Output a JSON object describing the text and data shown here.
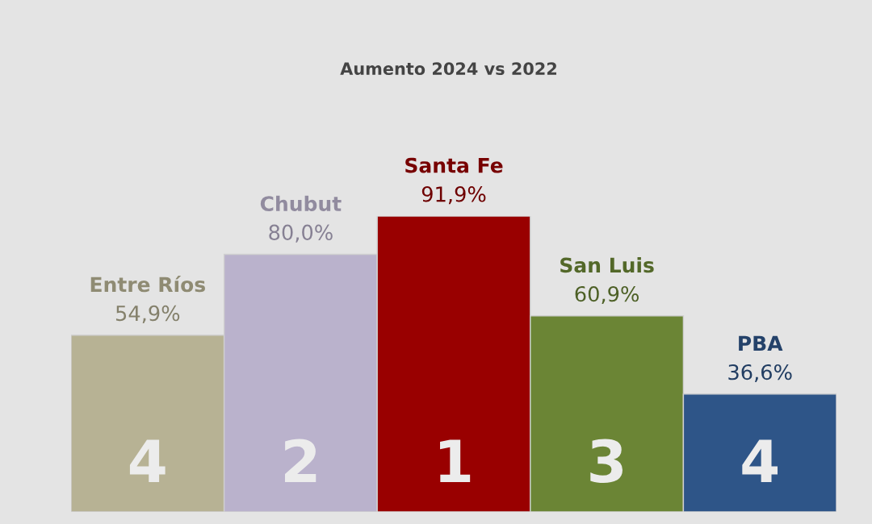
{
  "chart_data": {
    "type": "bar",
    "title": "Aumento 2024 vs 2022",
    "categories": [
      "Entre Ríos",
      "Chubut",
      "Santa Fe",
      "San Luis",
      "PBA"
    ],
    "values": [
      54.9,
      80.0,
      91.9,
      60.9,
      36.6
    ],
    "value_labels": [
      "54,9%",
      "80,0%",
      "91,9%",
      "60,9%",
      "36,6%"
    ],
    "colors": [
      "#b7b294",
      "#bab2cc",
      "#990000",
      "#6b8535",
      "#2e5588"
    ],
    "tick_labels": false,
    "annotations": [
      "4",
      "2",
      "1",
      "3",
      "4"
    ]
  }
}
